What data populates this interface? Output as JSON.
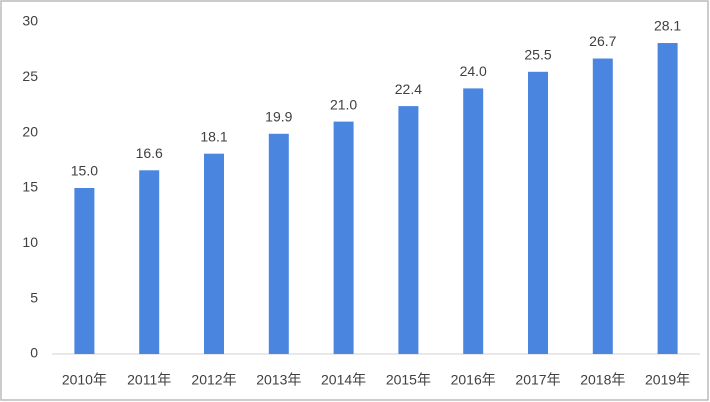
{
  "chart_data": {
    "type": "bar",
    "categories": [
      "2010年",
      "2011年",
      "2012年",
      "2013年",
      "2014年",
      "2015年",
      "2016年",
      "2017年",
      "2018年",
      "2019年"
    ],
    "values": [
      15.0,
      16.6,
      18.1,
      19.9,
      21.0,
      22.4,
      24.0,
      25.5,
      26.7,
      28.1
    ],
    "value_labels": [
      "15.0",
      "16.6",
      "18.1",
      "19.9",
      "21.0",
      "22.4",
      "24.0",
      "25.5",
      "26.7",
      "28.1"
    ],
    "color": "#4a86e0",
    "ylim": [
      0,
      30
    ],
    "yticks": [
      0,
      5,
      10,
      15,
      20,
      25,
      30
    ],
    "grid": false
  }
}
